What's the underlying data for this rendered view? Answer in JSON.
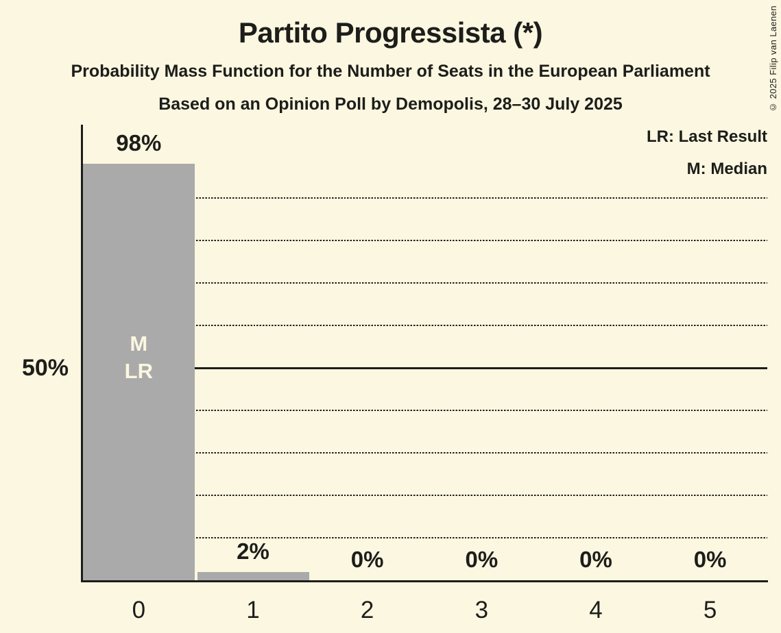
{
  "title": "Partito Progressista (*)",
  "subtitle1": "Probability Mass Function for the Number of Seats in the European Parliament",
  "subtitle2": "Based on an Opinion Poll by Demopolis, 28–30 July 2025",
  "legend": {
    "lr": "LR: Last Result",
    "m": "M: Median"
  },
  "y_axis": {
    "tick_label": "50%"
  },
  "copyright": "© 2025 Filip van Laenen",
  "colors": {
    "background": "#FBF7E0",
    "bar": "#AAAAAA",
    "text": "#1D1D1B",
    "bar_label": "#FBF7E0"
  },
  "chart_data": {
    "type": "bar",
    "title": "Partito Progressista (*)",
    "subtitle": "Probability Mass Function for the Number of Seats in the European Parliament",
    "source_note": "Based on an Opinion Poll by Demopolis, 28–30 July 2025",
    "categories": [
      "0",
      "1",
      "2",
      "3",
      "4",
      "5"
    ],
    "values": [
      98,
      2,
      0,
      0,
      0,
      0
    ],
    "value_labels": [
      "98%",
      "2%",
      "0%",
      "0%",
      "0%",
      "0%"
    ],
    "ylim": [
      0,
      100
    ],
    "y_tick_labels": [
      "50%"
    ],
    "gridlines_pct": [
      10,
      20,
      30,
      40,
      60,
      70,
      80,
      90
    ],
    "solid_line_pct": 50,
    "grid": "dotted horizontal lines every 10%, solid line at 50%",
    "legend_entries": [
      "LR: Last Result",
      "M: Median"
    ],
    "legend_position": "top-right",
    "bar_annotations": [
      {
        "category_index": 0,
        "lines": [
          "M",
          "LR"
        ]
      }
    ],
    "median_seats": "0",
    "last_result_seats": "0"
  }
}
